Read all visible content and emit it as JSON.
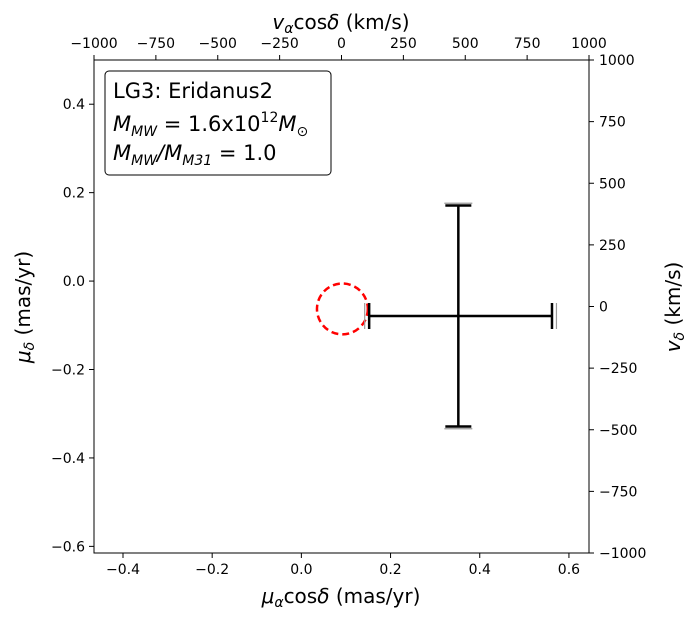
{
  "chart_data": {
    "type": "scatter",
    "annotation_lines": [
      "LG3: Eridanus2",
      "M_MW = 1.6x10^12 M_sun",
      "M_MW/M_M31 = 1.0"
    ],
    "axes": {
      "bottom": {
        "label": "μαcosδ (mas/yr)",
        "range": [
          -0.465,
          0.645
        ],
        "ticks": [
          -0.4,
          -0.2,
          0.0,
          0.2,
          0.4,
          0.6
        ],
        "tick_labels": [
          "−0.4",
          "−0.2",
          "0.0",
          "0.2",
          "0.4",
          "0.6"
        ]
      },
      "left": {
        "label": "μδ (mas/yr)",
        "range": [
          -0.615,
          0.5
        ],
        "ticks": [
          -0.6,
          -0.4,
          -0.2,
          0.0,
          0.2,
          0.4
        ],
        "tick_labels": [
          "−0.6",
          "−0.4",
          "−0.2",
          "0.0",
          "0.2",
          "0.4"
        ]
      },
      "top": {
        "label": "vαcosδ (km/s)",
        "range": [
          -1000,
          1000
        ],
        "ticks": [
          -1000,
          -750,
          -500,
          -250,
          0,
          250,
          500,
          750,
          1000
        ],
        "tick_labels": [
          "−1000",
          "−750",
          "−500",
          "−250",
          "0",
          "250",
          "500",
          "750",
          "1000"
        ]
      },
      "right": {
        "label": "vδ (km/s)",
        "range": [
          -1000,
          1000
        ],
        "ticks": [
          -1000,
          -750,
          -500,
          -250,
          0,
          250,
          500,
          750,
          1000
        ],
        "tick_labels": [
          "−1000",
          "−750",
          "−500",
          "−250",
          "0",
          "250",
          "500",
          "750",
          "1000"
        ]
      }
    },
    "ref_circle": {
      "x": 0.092,
      "y": -0.063,
      "radius": 0.057,
      "color": "#ff0000",
      "style": "dashed"
    },
    "point": {
      "x": 0.352,
      "y": -0.079,
      "xerr": [
        0.2,
        0.21
      ],
      "yerr": [
        0.25,
        0.25
      ],
      "xerr_gray": [
        0.21,
        0.22
      ],
      "yerr_gray": [
        0.255,
        0.255
      ],
      "color": "#000000",
      "gray": "#999999"
    },
    "grid": false
  }
}
